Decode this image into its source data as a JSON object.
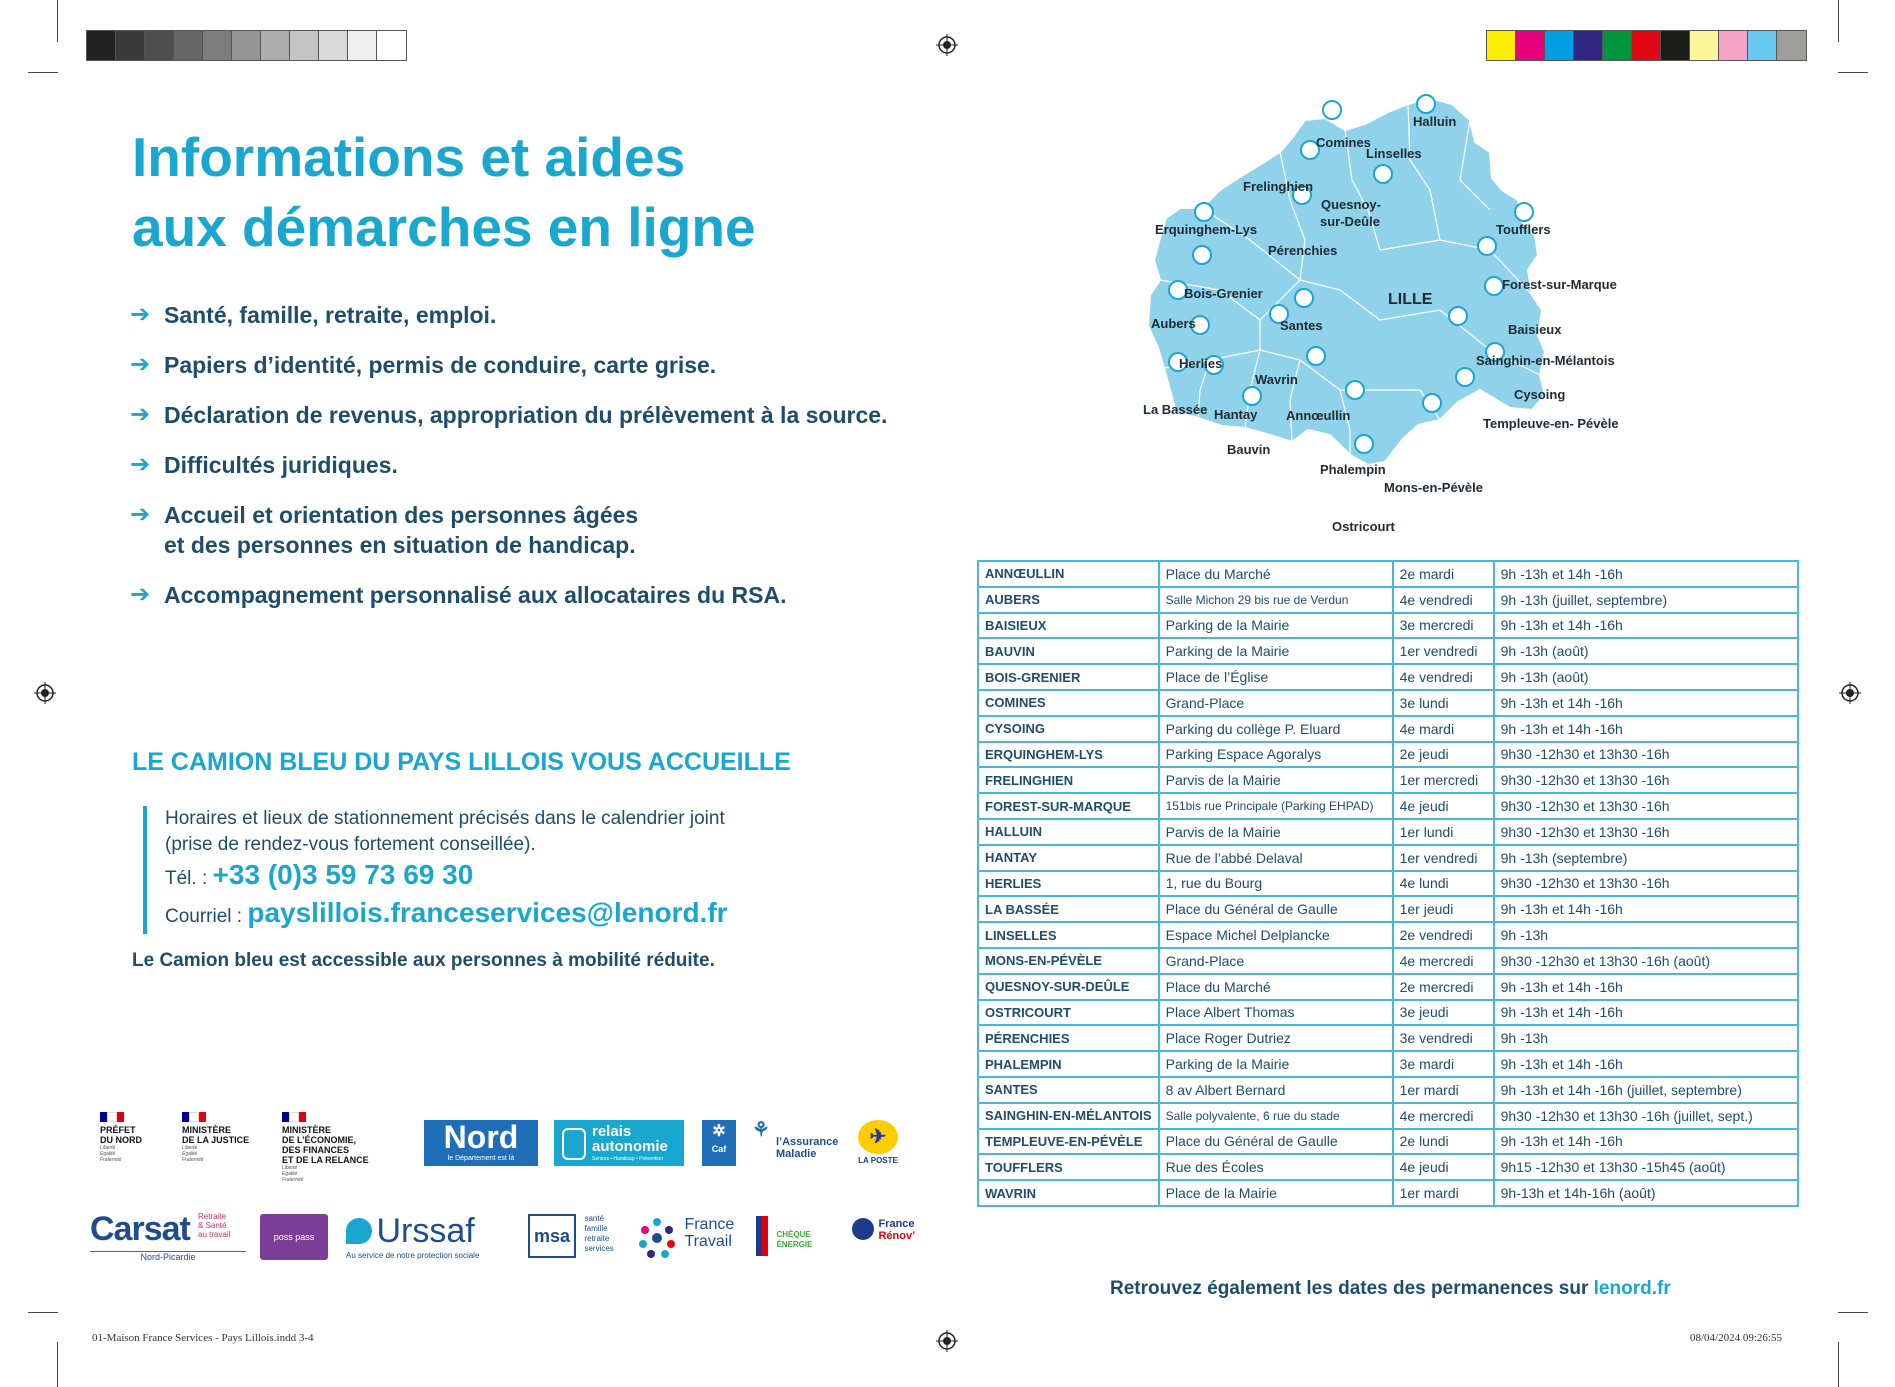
{
  "header": {
    "title_line1": "Informations et aides",
    "title_line2": "aux démarches en ligne"
  },
  "bullets": [
    "Santé, famille, retraite, emploi.",
    "Papiers d’identité, permis de conduire, carte grise.",
    "Déclaration de revenus, appropriation du prélèvement à la source.",
    "Difficultés juridiques.",
    "Accueil et orientation des personnes âgées",
    "et des personnes en situation de handicap.",
    "Accompagnement personnalisé aux allocataires du RSA."
  ],
  "camion": {
    "heading": "LE CAMION BLEU DU PAYS LILLOIS VOUS ACCUEILLE",
    "line1": "Horaires et lieux de stationnement précisés dans le calendrier joint",
    "line2": "(prise de rendez-vous fortement conseillée).",
    "tel_label": "Tél. : ",
    "tel": "+33 (0)3 59 73 69 30",
    "mail_label": "Courriel : ",
    "mail": "payslillois.franceservices@lenord.fr",
    "access": "Le Camion bleu est accessible aux personnes à mobilité réduite."
  },
  "logos": {
    "prefet": [
      "PRÉFET",
      "DU NORD"
    ],
    "justice": [
      "MINISTÈRE",
      "DE LA JUSTICE"
    ],
    "economie": [
      "MINISTÈRE",
      "DE L’ÉCONOMIE,",
      "DES FINANCES",
      "ET DE LA RELANCE"
    ],
    "motto": [
      "Liberté",
      "Égalité",
      "Fraternité"
    ],
    "nord": "Nord",
    "nord_sub": "le Département est là",
    "relais": [
      "relais",
      "autonomie"
    ],
    "relais_sub": "Seniors • Handicap • Prévention",
    "caf": "Caf",
    "assurance": [
      "l’Assurance",
      "Maladie"
    ],
    "laposte": "LA POSTE",
    "carsat": "Carsat",
    "carsat_side": [
      "Retraite",
      "& Santé",
      "au travail"
    ],
    "carsat_sub": "Nord-Picardie",
    "posspass": "poss pass",
    "urssaf": "Urssaf",
    "urssaf_sub": "Au service de notre protection sociale",
    "msa": "msa",
    "msa_side": [
      "santé",
      "famille",
      "retraite",
      "services"
    ],
    "francetravail": [
      "France",
      "Travail"
    ],
    "cheque": [
      "CHÈQUE",
      "ÉNERGIE"
    ],
    "renov": [
      "France",
      "Rénov’"
    ]
  },
  "map": {
    "labels": [
      {
        "name": "Halluin"
      },
      {
        "name": "Comines"
      },
      {
        "name": "Linselles"
      },
      {
        "name": "Frelinghien"
      },
      {
        "name": "Quesnoy-"
      },
      {
        "name": "sur-Deûle"
      },
      {
        "name": "Erquinghem-Lys"
      },
      {
        "name": "Pérenchies"
      },
      {
        "name": "Toufflers"
      },
      {
        "name": "Bois-Grenier"
      },
      {
        "name": "LILLE"
      },
      {
        "name": "Forest-sur-Marque"
      },
      {
        "name": "Aubers"
      },
      {
        "name": "Santes"
      },
      {
        "name": "Baisieux"
      },
      {
        "name": "Herlies"
      },
      {
        "name": "Sainghin-en-Mélantois"
      },
      {
        "name": "Wavrin"
      },
      {
        "name": "Cysoing"
      },
      {
        "name": "La Bassée"
      },
      {
        "name": "Hantay"
      },
      {
        "name": "Annœullin"
      },
      {
        "name": "Templeuve-en-  Pévèle"
      },
      {
        "name": "Bauvin"
      },
      {
        "name": "Phalempin"
      },
      {
        "name": "Mons-en-Pévèle"
      },
      {
        "name": "Ostricourt"
      }
    ]
  },
  "table": [
    [
      "ANNŒULLIN",
      "Place du Marché",
      "2e mardi",
      "9h -13h et 14h -16h"
    ],
    [
      "AUBERS",
      "Salle Michon 29 bis rue de Verdun",
      "4e vendredi",
      "9h -13h (juillet, septembre)"
    ],
    [
      "BAISIEUX",
      "Parking de la Mairie",
      "3e mercredi",
      "9h -13h et 14h -16h"
    ],
    [
      "BAUVIN",
      "Parking de la Mairie",
      "1er vendredi",
      "9h -13h (août)"
    ],
    [
      "BOIS-GRENIER",
      "Place de l’Église",
      "4e vendredi",
      "9h -13h (août)"
    ],
    [
      "COMINES",
      "Grand-Place",
      "3e lundi",
      "9h -13h et 14h -16h"
    ],
    [
      "CYSOING",
      "Parking du collège P. Eluard",
      "4e mardi",
      "9h -13h et 14h -16h"
    ],
    [
      "ERQUINGHEM-LYS",
      "Parking Espace Agoralys",
      "2e jeudi",
      "9h30 -12h30 et 13h30 -16h"
    ],
    [
      "FRELINGHIEN",
      "Parvis de la Mairie",
      "1er mercredi",
      "9h30 -12h30 et 13h30 -16h"
    ],
    [
      "FOREST-SUR-MARQUE",
      "151bis rue Principale (Parking EHPAD)",
      "4e jeudi",
      "9h30 -12h30 et 13h30 -16h"
    ],
    [
      "HALLUIN",
      "Parvis de la Mairie",
      "1er lundi",
      "9h30 -12h30 et 13h30 -16h"
    ],
    [
      "HANTAY",
      "Rue de l’abbé Delaval",
      "1er vendredi",
      "9h -13h (septembre)"
    ],
    [
      "HERLIES",
      "1, rue du Bourg",
      "4e lundi",
      "9h30 -12h30 et 13h30 -16h"
    ],
    [
      "LA BASSÉE",
      "Place du Général de Gaulle",
      "1er jeudi",
      "9h -13h et 14h -16h"
    ],
    [
      "LINSELLES",
      "Espace Michel Delplancke",
      "2e vendredi",
      "9h -13h"
    ],
    [
      "MONS-EN-PÉVÈLE",
      "Grand-Place",
      "4e mercredi",
      "9h30 -12h30 et 13h30 -16h (août)"
    ],
    [
      "QUESNOY-SUR-DEÛLE",
      "Place du Marché",
      "2e mercredi",
      "9h -13h et 14h -16h"
    ],
    [
      "OSTRICOURT",
      "Place Albert Thomas",
      "3e jeudi",
      "9h -13h et 14h -16h"
    ],
    [
      "PÉRENCHIES",
      "Place Roger Dutriez",
      "3e vendredi",
      "9h -13h"
    ],
    [
      "PHALEMPIN",
      "Parking de la Mairie",
      "3e mardi",
      "9h -13h et 14h -16h"
    ],
    [
      "SANTES",
      "8 av Albert Bernard",
      "1er mardi",
      "9h -13h et 14h -16h (juillet, septembre)"
    ],
    [
      "SAINGHIN-EN-MÉLANTOIS",
      "Salle polyvalente, 6 rue du stade",
      "4e mercredi",
      "9h30 -12h30 et 13h30 -16h (juillet, sept.)"
    ],
    [
      "TEMPLEUVE-EN-PÉVÈLE",
      "Place du Général de Gaulle",
      "2e lundi",
      "9h -13h et 14h -16h"
    ],
    [
      "TOUFFLERS",
      "Rue des Écoles",
      "4e jeudi",
      "9h15 -12h30 et 13h30 -15h45 (août)"
    ],
    [
      "WAVRIN",
      "Place de la Mairie",
      "1er mardi",
      "9h-13h et 14h-16h (août)"
    ]
  ],
  "footnote": {
    "text": "Retrouvez également les dates des permanences sur ",
    "link": "lenord.fr"
  },
  "slug": {
    "left": "01-Maison France Services - Pays Lillois.indd   3-4",
    "right": "08/04/2024   09:26:55"
  },
  "colors": {
    "accent": "#1aa7cf",
    "text": "#1e4d6b",
    "map_fill": "#8fd2ea",
    "table_border": "#47b8d8"
  }
}
